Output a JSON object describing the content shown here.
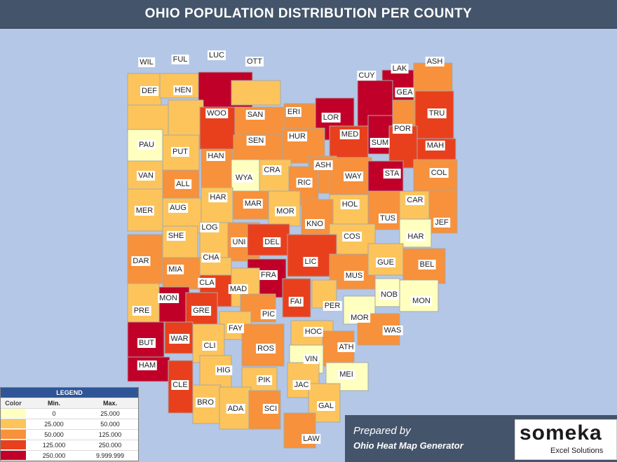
{
  "title": "OHIO POPULATION DISTRIBUTION PER COUNTY",
  "colors": {
    "background": "#b4c7e7",
    "title_bar": "#44546a",
    "tiers": [
      "#ffffc0",
      "#fcc45a",
      "#f7913b",
      "#e8401d",
      "#c00028"
    ]
  },
  "legend": {
    "title": "LEGEND",
    "headers": {
      "color": "Color",
      "min": "Min.",
      "max": "Max."
    },
    "rows": [
      {
        "min": "0",
        "max": "25.000",
        "tier": 0
      },
      {
        "min": "25.000",
        "max": "50.000",
        "tier": 1
      },
      {
        "min": "50.000",
        "max": "125.000",
        "tier": 2
      },
      {
        "min": "125.000",
        "max": "250.000",
        "tier": 3
      },
      {
        "min": "250.000",
        "max": "9.999.999",
        "tier": 4
      }
    ]
  },
  "footer": {
    "prepared_by": "Prepared by",
    "generator": "Ohio Heat Map Generator",
    "logo_text": "someka",
    "logo_sub": "Excel Solutions"
  },
  "counties": [
    {
      "abbr": "WIL",
      "tier": 1
    },
    {
      "abbr": "FUL",
      "tier": 1
    },
    {
      "abbr": "LUC",
      "tier": 4
    },
    {
      "abbr": "OTT",
      "tier": 1
    },
    {
      "abbr": "LAK",
      "tier": 4
    },
    {
      "abbr": "ASH",
      "tier": 2
    },
    {
      "abbr": "GEA",
      "tier": 2
    },
    {
      "abbr": "CUY",
      "tier": 4
    },
    {
      "abbr": "DEF",
      "tier": 1
    },
    {
      "abbr": "HEN",
      "tier": 1
    },
    {
      "abbr": "WOO",
      "tier": 3
    },
    {
      "abbr": "SAN",
      "tier": 2
    },
    {
      "abbr": "ERI",
      "tier": 2
    },
    {
      "abbr": "LOR",
      "tier": 4
    },
    {
      "abbr": "TRU",
      "tier": 3
    },
    {
      "abbr": "PAU",
      "tier": 0
    },
    {
      "abbr": "PUT",
      "tier": 1
    },
    {
      "abbr": "SEN",
      "tier": 2
    },
    {
      "abbr": "HUR",
      "tier": 2
    },
    {
      "abbr": "MED",
      "tier": 3
    },
    {
      "abbr": "SUM",
      "tier": 4
    },
    {
      "abbr": "POR",
      "tier": 3
    },
    {
      "abbr": "MAH",
      "tier": 3
    },
    {
      "abbr": "VAN",
      "tier": 1
    },
    {
      "abbr": "ALL",
      "tier": 2
    },
    {
      "abbr": "HAN",
      "tier": 2
    },
    {
      "abbr": "WYA",
      "tier": 0
    },
    {
      "abbr": "CRA",
      "tier": 1
    },
    {
      "abbr": "ASH",
      "tier": 2
    },
    {
      "abbr": "RIC",
      "tier": 2
    },
    {
      "abbr": "WAY",
      "tier": 2
    },
    {
      "abbr": "STA",
      "tier": 4
    },
    {
      "abbr": "COL",
      "tier": 2
    },
    {
      "abbr": "MER",
      "tier": 1
    },
    {
      "abbr": "AUG",
      "tier": 1
    },
    {
      "abbr": "HAR",
      "tier": 1
    },
    {
      "abbr": "MAR",
      "tier": 2
    },
    {
      "abbr": "MOR",
      "tier": 1
    },
    {
      "abbr": "HOL",
      "tier": 1
    },
    {
      "abbr": "CAR",
      "tier": 1
    },
    {
      "abbr": "KNO",
      "tier": 2
    },
    {
      "abbr": "TUS",
      "tier": 2
    },
    {
      "abbr": "JEF",
      "tier": 2
    },
    {
      "abbr": "SHE",
      "tier": 1
    },
    {
      "abbr": "LOG",
      "tier": 1
    },
    {
      "abbr": "UNI",
      "tier": 2
    },
    {
      "abbr": "DEL",
      "tier": 3
    },
    {
      "abbr": "HAR",
      "tier": 0
    },
    {
      "abbr": "COS",
      "tier": 1
    },
    {
      "abbr": "DAR",
      "tier": 2
    },
    {
      "abbr": "MIA",
      "tier": 2
    },
    {
      "abbr": "CHA",
      "tier": 1
    },
    {
      "abbr": "LIC",
      "tier": 3
    },
    {
      "abbr": "MUS",
      "tier": 2
    },
    {
      "abbr": "GUE",
      "tier": 1
    },
    {
      "abbr": "BEL",
      "tier": 2
    },
    {
      "abbr": "CLA",
      "tier": 3
    },
    {
      "abbr": "FRA",
      "tier": 4
    },
    {
      "abbr": "MAD",
      "tier": 1
    },
    {
      "abbr": "MON",
      "tier": 4
    },
    {
      "abbr": "PRE",
      "tier": 1
    },
    {
      "abbr": "GRE",
      "tier": 3
    },
    {
      "abbr": "FAI",
      "tier": 3
    },
    {
      "abbr": "PER",
      "tier": 1
    },
    {
      "abbr": "NOB",
      "tier": 0
    },
    {
      "abbr": "MON",
      "tier": 0
    },
    {
      "abbr": "PIC",
      "tier": 2
    },
    {
      "abbr": "MOR",
      "tier": 0
    },
    {
      "abbr": "FAY",
      "tier": 1
    },
    {
      "abbr": "HOC",
      "tier": 1
    },
    {
      "abbr": "WAS",
      "tier": 2
    },
    {
      "abbr": "BUT",
      "tier": 4
    },
    {
      "abbr": "WAR",
      "tier": 3
    },
    {
      "abbr": "CLI",
      "tier": 1
    },
    {
      "abbr": "ROS",
      "tier": 2
    },
    {
      "abbr": "ATH",
      "tier": 2
    },
    {
      "abbr": "VIN",
      "tier": 0
    },
    {
      "abbr": "HAM",
      "tier": 4
    },
    {
      "abbr": "HIG",
      "tier": 1
    },
    {
      "abbr": "MEI",
      "tier": 0
    },
    {
      "abbr": "CLE",
      "tier": 3
    },
    {
      "abbr": "PIK",
      "tier": 1
    },
    {
      "abbr": "JAC",
      "tier": 1
    },
    {
      "abbr": "BRO",
      "tier": 1
    },
    {
      "abbr": "ADA",
      "tier": 1
    },
    {
      "abbr": "SCI",
      "tier": 2
    },
    {
      "abbr": "GAL",
      "tier": 1
    },
    {
      "abbr": "LAW",
      "tier": 2
    }
  ]
}
